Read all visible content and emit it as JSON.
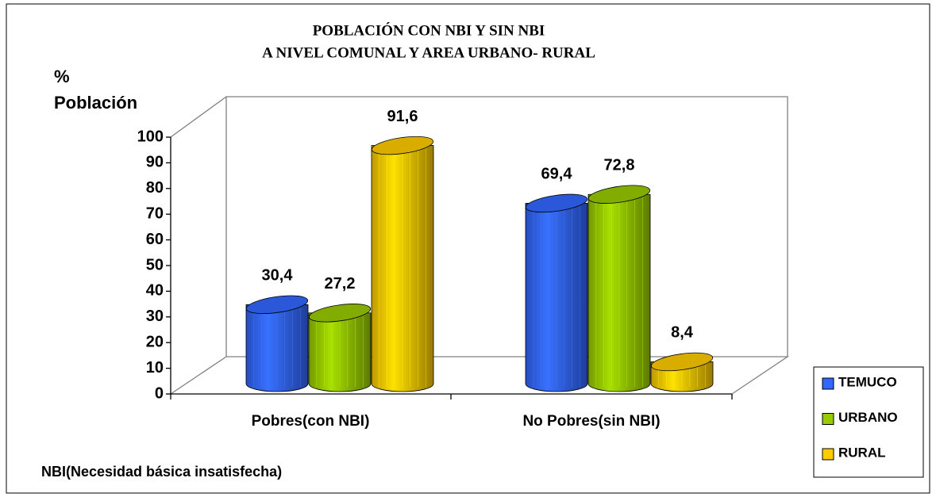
{
  "chart_data": {
    "type": "bar3d",
    "title": [
      "POBLACIÓN CON NBI Y SIN NBI",
      "A NIVEL COMUNAL Y AREA URBANO- RURAL"
    ],
    "y_label": [
      "%",
      "Población"
    ],
    "annotation": "NBI(Necesidad básica insatisfecha)",
    "categories": [
      "Pobres(con NBI)",
      "No Pobres(sin NBI)"
    ],
    "series": [
      {
        "name": "TEMUCO",
        "color": "#3366ff",
        "values": [
          30.4,
          69.4
        ],
        "value_labels": [
          "30,4",
          "69,4"
        ]
      },
      {
        "name": "URBANO",
        "color": "#99cc00",
        "values": [
          27.2,
          72.8
        ],
        "value_labels": [
          "27,2",
          "72,8"
        ]
      },
      {
        "name": "RURAL",
        "color": "#ffcc00",
        "values": [
          91.6,
          8.4
        ],
        "value_labels": [
          "91,6",
          "8,4"
        ]
      }
    ],
    "ylim": [
      0,
      100
    ],
    "yticks": [
      0,
      10,
      20,
      30,
      40,
      50,
      60,
      70,
      80,
      90,
      100
    ],
    "legend": "right"
  }
}
